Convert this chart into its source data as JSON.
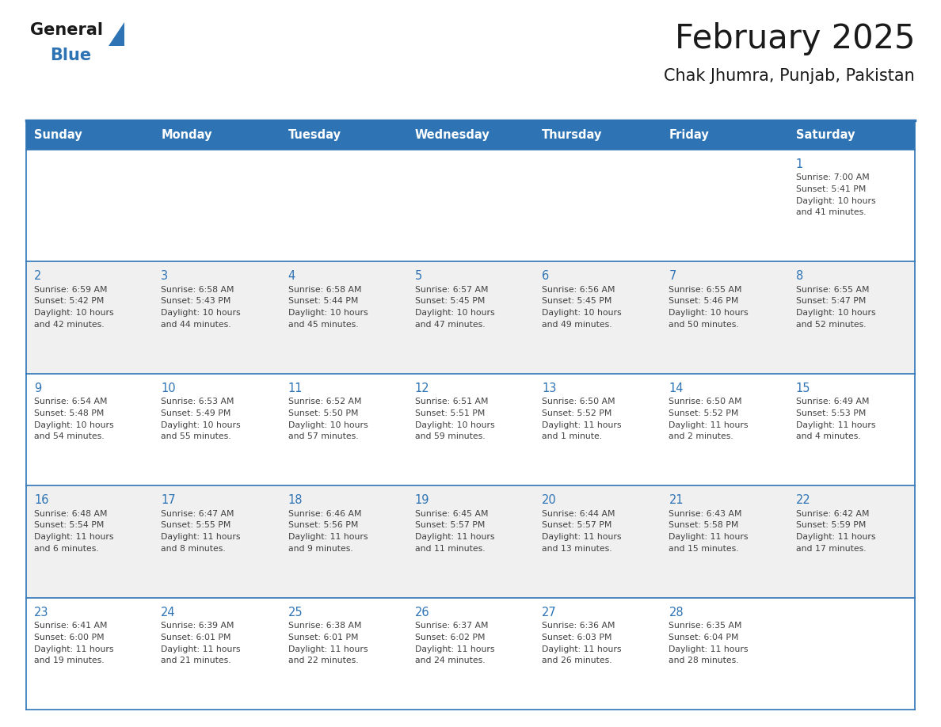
{
  "title": "February 2025",
  "subtitle": "Chak Jhumra, Punjab, Pakistan",
  "days_of_week": [
    "Sunday",
    "Monday",
    "Tuesday",
    "Wednesday",
    "Thursday",
    "Friday",
    "Saturday"
  ],
  "header_bg": "#2E74B5",
  "header_text": "#FFFFFF",
  "row_bg_even": "#FFFFFF",
  "row_bg_odd": "#F0F0F0",
  "cell_border": "#2E74B5",
  "day_num_color": "#2E74B5",
  "info_text_color": "#404040",
  "title_color": "#1a1a1a",
  "subtitle_color": "#1a1a1a",
  "logo_general_color": "#1a1a1a",
  "logo_blue_color": "#2E74B5",
  "calendar": [
    [
      null,
      null,
      null,
      null,
      null,
      null,
      {
        "day": 1,
        "sunrise": "7:00 AM",
        "sunset": "5:41 PM",
        "daylight": "10 hours and 41 minutes."
      }
    ],
    [
      {
        "day": 2,
        "sunrise": "6:59 AM",
        "sunset": "5:42 PM",
        "daylight": "10 hours and 42 minutes."
      },
      {
        "day": 3,
        "sunrise": "6:58 AM",
        "sunset": "5:43 PM",
        "daylight": "10 hours and 44 minutes."
      },
      {
        "day": 4,
        "sunrise": "6:58 AM",
        "sunset": "5:44 PM",
        "daylight": "10 hours and 45 minutes."
      },
      {
        "day": 5,
        "sunrise": "6:57 AM",
        "sunset": "5:45 PM",
        "daylight": "10 hours and 47 minutes."
      },
      {
        "day": 6,
        "sunrise": "6:56 AM",
        "sunset": "5:45 PM",
        "daylight": "10 hours and 49 minutes."
      },
      {
        "day": 7,
        "sunrise": "6:55 AM",
        "sunset": "5:46 PM",
        "daylight": "10 hours and 50 minutes."
      },
      {
        "day": 8,
        "sunrise": "6:55 AM",
        "sunset": "5:47 PM",
        "daylight": "10 hours and 52 minutes."
      }
    ],
    [
      {
        "day": 9,
        "sunrise": "6:54 AM",
        "sunset": "5:48 PM",
        "daylight": "10 hours and 54 minutes."
      },
      {
        "day": 10,
        "sunrise": "6:53 AM",
        "sunset": "5:49 PM",
        "daylight": "10 hours and 55 minutes."
      },
      {
        "day": 11,
        "sunrise": "6:52 AM",
        "sunset": "5:50 PM",
        "daylight": "10 hours and 57 minutes."
      },
      {
        "day": 12,
        "sunrise": "6:51 AM",
        "sunset": "5:51 PM",
        "daylight": "10 hours and 59 minutes."
      },
      {
        "day": 13,
        "sunrise": "6:50 AM",
        "sunset": "5:52 PM",
        "daylight": "11 hours and 1 minute."
      },
      {
        "day": 14,
        "sunrise": "6:50 AM",
        "sunset": "5:52 PM",
        "daylight": "11 hours and 2 minutes."
      },
      {
        "day": 15,
        "sunrise": "6:49 AM",
        "sunset": "5:53 PM",
        "daylight": "11 hours and 4 minutes."
      }
    ],
    [
      {
        "day": 16,
        "sunrise": "6:48 AM",
        "sunset": "5:54 PM",
        "daylight": "11 hours and 6 minutes."
      },
      {
        "day": 17,
        "sunrise": "6:47 AM",
        "sunset": "5:55 PM",
        "daylight": "11 hours and 8 minutes."
      },
      {
        "day": 18,
        "sunrise": "6:46 AM",
        "sunset": "5:56 PM",
        "daylight": "11 hours and 9 minutes."
      },
      {
        "day": 19,
        "sunrise": "6:45 AM",
        "sunset": "5:57 PM",
        "daylight": "11 hours and 11 minutes."
      },
      {
        "day": 20,
        "sunrise": "6:44 AM",
        "sunset": "5:57 PM",
        "daylight": "11 hours and 13 minutes."
      },
      {
        "day": 21,
        "sunrise": "6:43 AM",
        "sunset": "5:58 PM",
        "daylight": "11 hours and 15 minutes."
      },
      {
        "day": 22,
        "sunrise": "6:42 AM",
        "sunset": "5:59 PM",
        "daylight": "11 hours and 17 minutes."
      }
    ],
    [
      {
        "day": 23,
        "sunrise": "6:41 AM",
        "sunset": "6:00 PM",
        "daylight": "11 hours and 19 minutes."
      },
      {
        "day": 24,
        "sunrise": "6:39 AM",
        "sunset": "6:01 PM",
        "daylight": "11 hours and 21 minutes."
      },
      {
        "day": 25,
        "sunrise": "6:38 AM",
        "sunset": "6:01 PM",
        "daylight": "11 hours and 22 minutes."
      },
      {
        "day": 26,
        "sunrise": "6:37 AM",
        "sunset": "6:02 PM",
        "daylight": "11 hours and 24 minutes."
      },
      {
        "day": 27,
        "sunrise": "6:36 AM",
        "sunset": "6:03 PM",
        "daylight": "11 hours and 26 minutes."
      },
      {
        "day": 28,
        "sunrise": "6:35 AM",
        "sunset": "6:04 PM",
        "daylight": "11 hours and 28 minutes."
      },
      null
    ]
  ]
}
